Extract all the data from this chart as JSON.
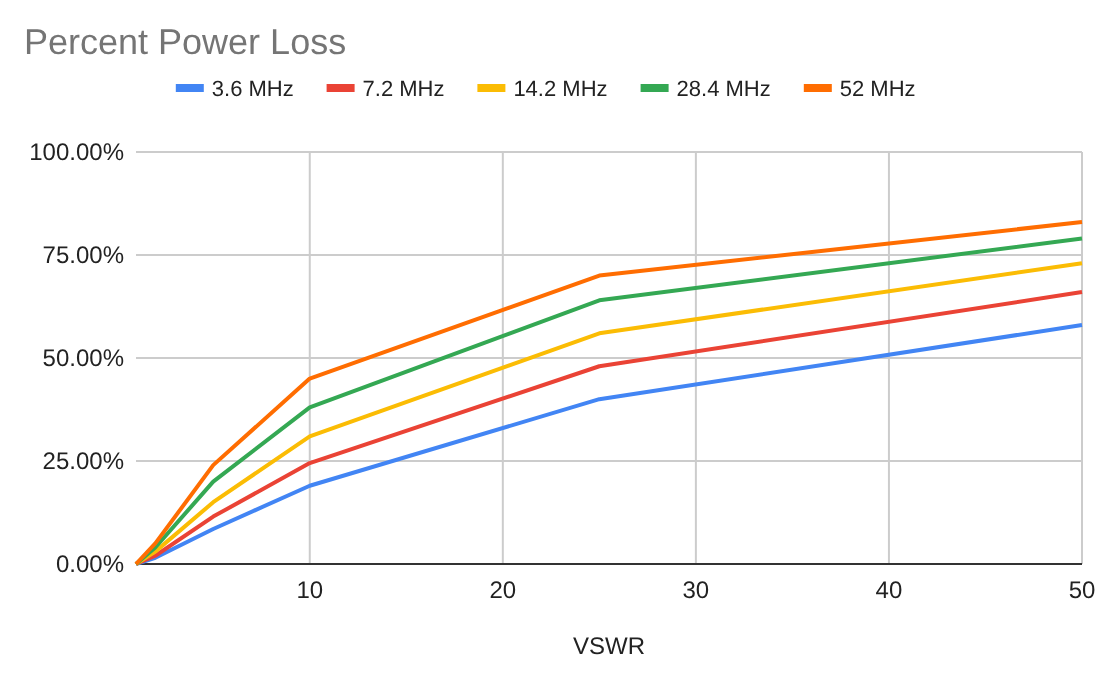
{
  "chart_data": {
    "type": "line",
    "title": "Percent Power Loss",
    "xlabel": "VSWR",
    "x": [
      1,
      2,
      5,
      10,
      25,
      50
    ],
    "series": [
      {
        "name": "3.6 MHz",
        "color": "#4285f4",
        "values": [
          0,
          1.5,
          8.5,
          19,
          40,
          58
        ]
      },
      {
        "name": "7.2 MHz",
        "color": "#ea4335",
        "values": [
          0,
          2,
          11.5,
          24.5,
          48,
          66
        ]
      },
      {
        "name": "14.2 MHz",
        "color": "#fbbc04",
        "values": [
          0,
          3,
          15,
          31,
          56,
          73
        ]
      },
      {
        "name": "28.4 MHz",
        "color": "#34a853",
        "values": [
          0,
          4,
          20,
          38,
          64,
          79
        ]
      },
      {
        "name": "52 MHz",
        "color": "#ff6d01",
        "values": [
          0,
          5,
          24,
          45,
          70,
          83
        ]
      }
    ],
    "xlim": [
      1,
      50
    ],
    "xticks": [
      10,
      20,
      30,
      40,
      50
    ],
    "ylim": [
      0,
      100
    ],
    "yticks": [
      {
        "value": 0,
        "label": "0.00%"
      },
      {
        "value": 25,
        "label": "25.00%"
      },
      {
        "value": 50,
        "label": "50.00%"
      },
      {
        "value": 75,
        "label": "75.00%"
      },
      {
        "value": 100,
        "label": "100.00%"
      }
    ],
    "grid": true,
    "legend": "top",
    "marker": "none",
    "line_style": "solid"
  }
}
